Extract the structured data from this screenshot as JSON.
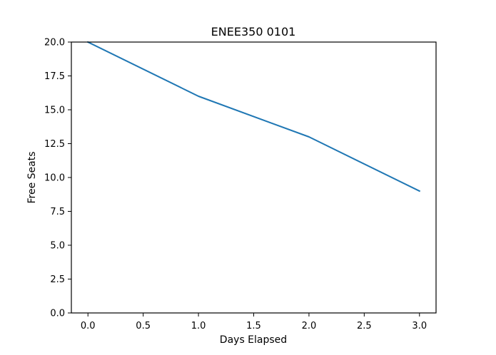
{
  "chart_data": {
    "type": "line",
    "title": "ENEE350 0101",
    "xlabel": "Days Elapsed",
    "ylabel": "Free Seats",
    "xlim": [
      -0.15,
      3.15
    ],
    "ylim": [
      0,
      20
    ],
    "grid": false,
    "legend": "none",
    "x_ticks": [
      0.0,
      0.5,
      1.0,
      1.5,
      2.0,
      2.5,
      3.0
    ],
    "x_tick_labels": [
      "0.0",
      "0.5",
      "1.0",
      "1.5",
      "2.0",
      "2.5",
      "3.0"
    ],
    "y_ticks": [
      0.0,
      2.5,
      5.0,
      7.5,
      10.0,
      12.5,
      15.0,
      17.5,
      20.0
    ],
    "y_tick_labels": [
      "0.0",
      "2.5",
      "5.0",
      "7.5",
      "10.0",
      "12.5",
      "15.0",
      "17.5",
      "20.0"
    ],
    "series": [
      {
        "x": [
          0,
          1,
          2,
          3
        ],
        "values": [
          20,
          16,
          13,
          9
        ],
        "color": "#1f77b4"
      }
    ]
  }
}
